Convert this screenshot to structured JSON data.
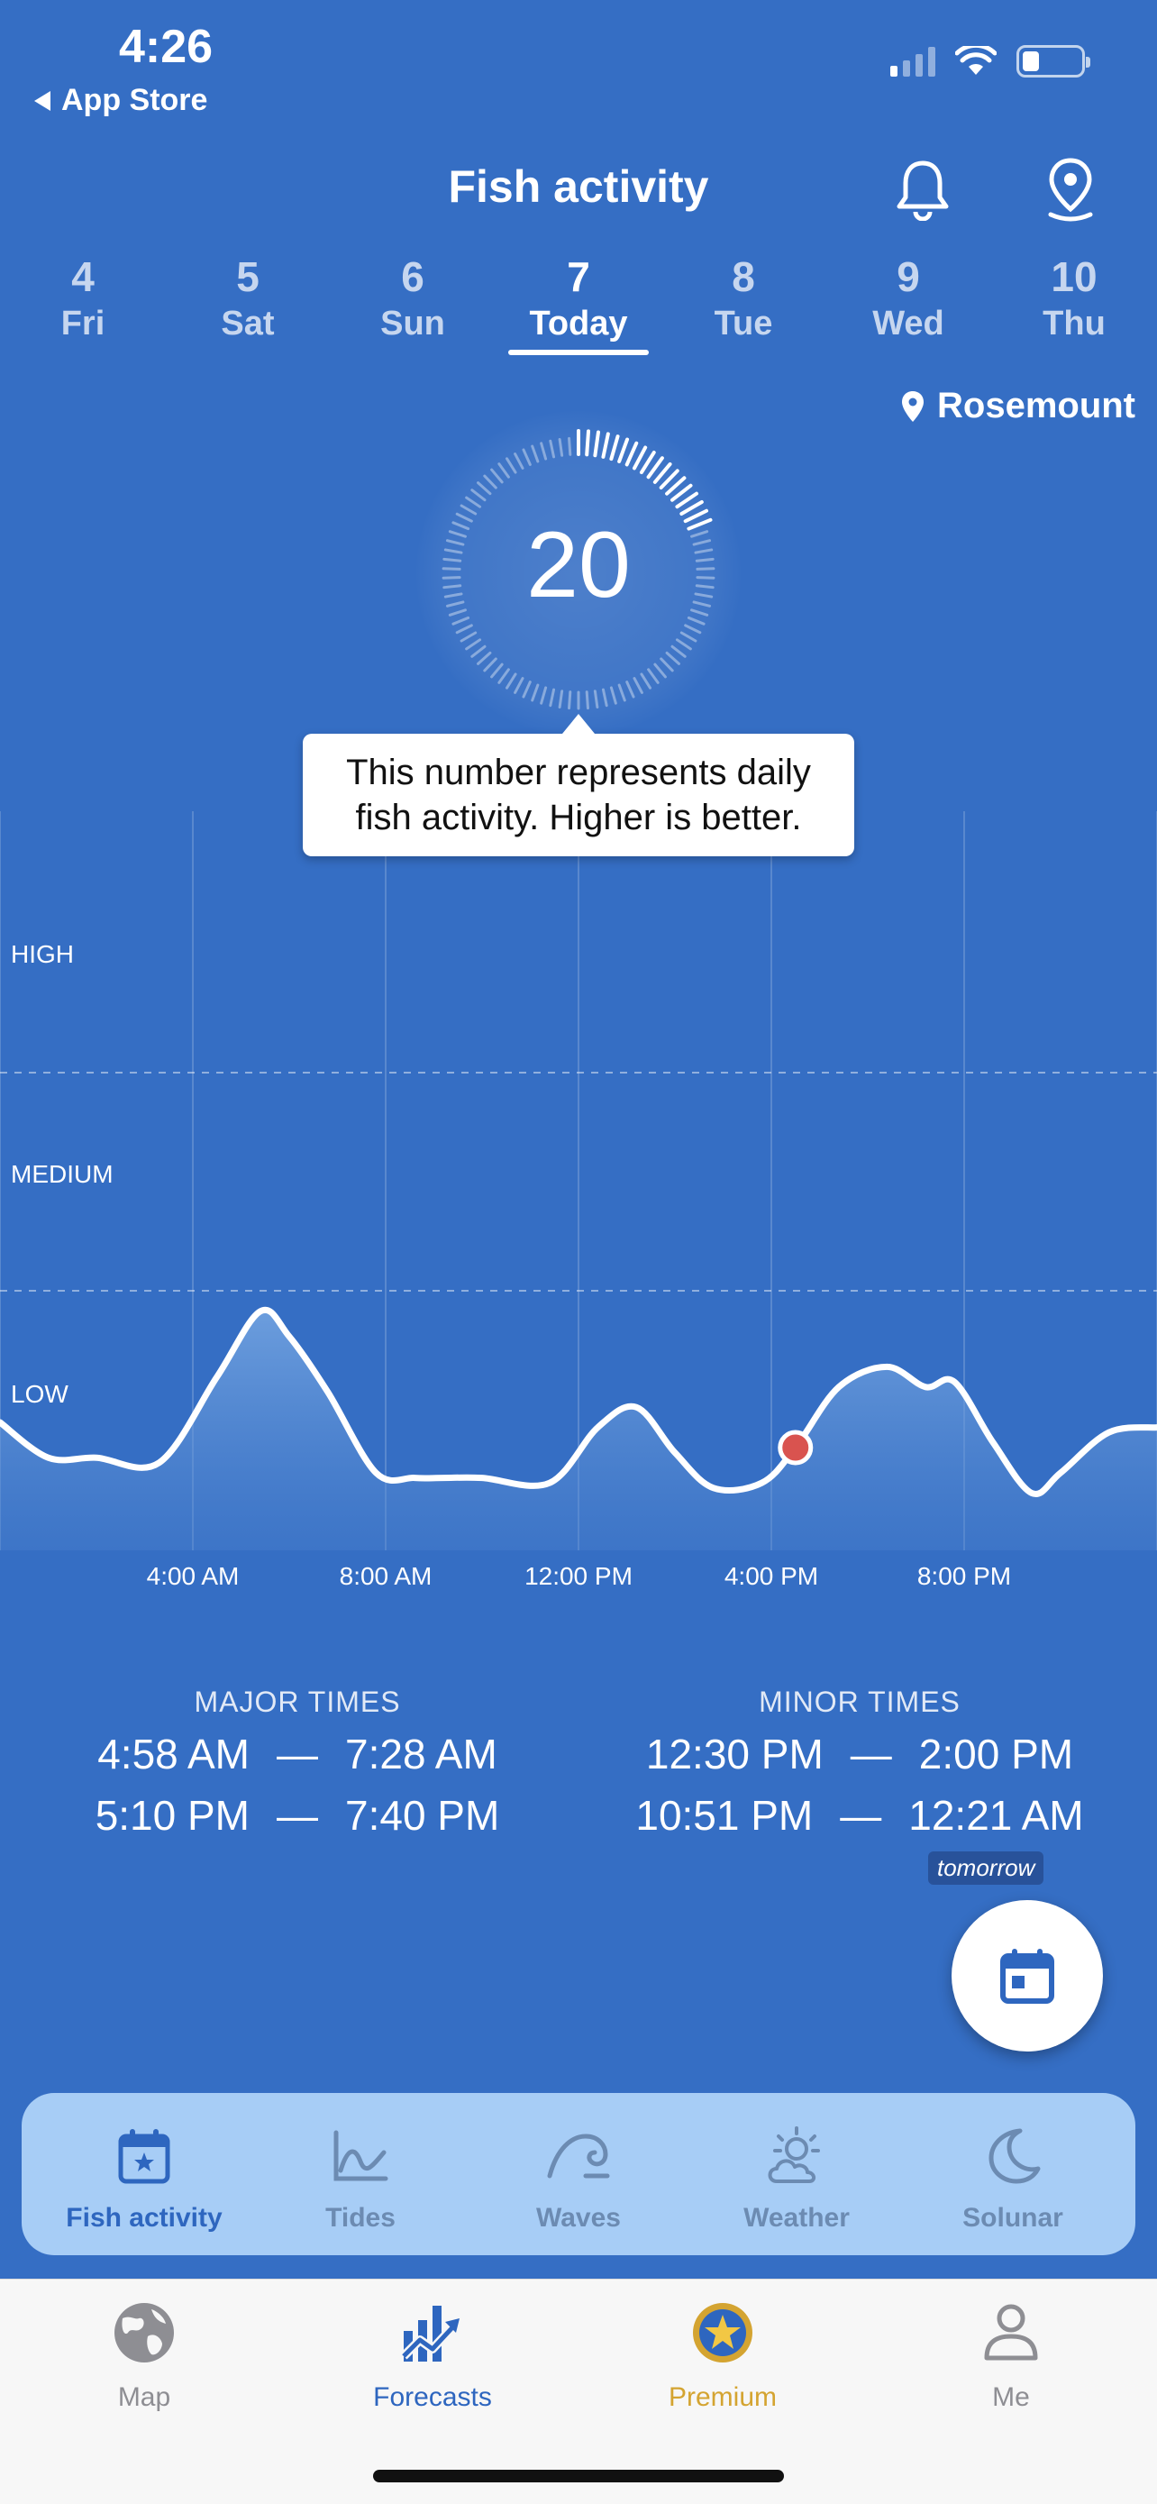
{
  "status": {
    "time": "4:26",
    "back_label": "App Store"
  },
  "header": {
    "title": "Fish activity"
  },
  "days": [
    {
      "num": "4",
      "label": "Fri"
    },
    {
      "num": "5",
      "label": "Sat"
    },
    {
      "num": "6",
      "label": "Sun"
    },
    {
      "num": "7",
      "label": "Today",
      "active": true
    },
    {
      "num": "8",
      "label": "Tue"
    },
    {
      "num": "9",
      "label": "Wed"
    },
    {
      "num": "10",
      "label": "Thu"
    }
  ],
  "location": "Rosemount",
  "score": "20",
  "tooltip": {
    "line1": "This number represents daily",
    "line2": "fish activity. Higher is better."
  },
  "chart_data": {
    "type": "area",
    "y_levels": [
      "HIGH",
      "MEDIUM",
      "LOW"
    ],
    "x_tick_labels": [
      "4:00 AM",
      "8:00 AM",
      "12:00 PM",
      "4:00 PM",
      "8:00 PM"
    ],
    "x_ticks_hours": [
      4,
      8,
      12,
      16,
      20
    ],
    "xlim_hours": [
      0,
      24
    ],
    "ylim": [
      0,
      1
    ],
    "current_hour": 16.5,
    "current_value": 0.2,
    "series": [
      {
        "x": [
          0,
          1,
          2,
          3.3,
          4.5,
          5.4,
          6,
          6.8,
          7.8,
          8.6,
          9.2,
          10,
          11.4,
          12.4,
          13.2,
          14,
          14.8,
          15.8,
          16.5,
          17.4,
          18.4,
          19.2,
          19.8,
          20.6,
          21.4,
          22,
          23,
          24
        ],
        "y": [
          0.25,
          0.18,
          0.18,
          0.17,
          0.34,
          0.47,
          0.42,
          0.31,
          0.15,
          0.14,
          0.14,
          0.14,
          0.13,
          0.24,
          0.28,
          0.19,
          0.12,
          0.13,
          0.2,
          0.32,
          0.36,
          0.32,
          0.33,
          0.21,
          0.11,
          0.15,
          0.23,
          0.24
        ]
      }
    ],
    "grid": true
  },
  "times": {
    "major": {
      "title": "MAJOR TIMES",
      "rows": [
        [
          "4:58 AM",
          "7:28 AM"
        ],
        [
          "5:10 PM",
          "7:40 PM"
        ]
      ]
    },
    "minor": {
      "title": "MINOR TIMES",
      "rows": [
        [
          "12:30 PM",
          "2:00 PM"
        ],
        [
          "10:51 PM",
          "12:21 AM"
        ]
      ]
    },
    "dash": "—",
    "tomorrow_label": "tomorrow"
  },
  "subtabs": [
    {
      "label": "Fish activity",
      "icon": "calendar-star-icon",
      "active": true
    },
    {
      "label": "Tides",
      "icon": "tides-chart-icon"
    },
    {
      "label": "Waves",
      "icon": "wave-icon"
    },
    {
      "label": "Weather",
      "icon": "sun-cloud-icon"
    },
    {
      "label": "Solunar",
      "icon": "moon-icon"
    }
  ],
  "bottomnav": [
    {
      "label": "Map",
      "icon": "globe-icon"
    },
    {
      "label": "Forecasts",
      "icon": "forecast-chart-icon",
      "active": true
    },
    {
      "label": "Premium",
      "icon": "premium-star-icon"
    },
    {
      "label": "Me",
      "icon": "person-icon"
    }
  ],
  "colors": {
    "background": "#356EC4",
    "accent": "#2E66BF",
    "marker": "#D9534F",
    "premium": "#D4A431",
    "subtab_bg": "#A7CDF6"
  }
}
